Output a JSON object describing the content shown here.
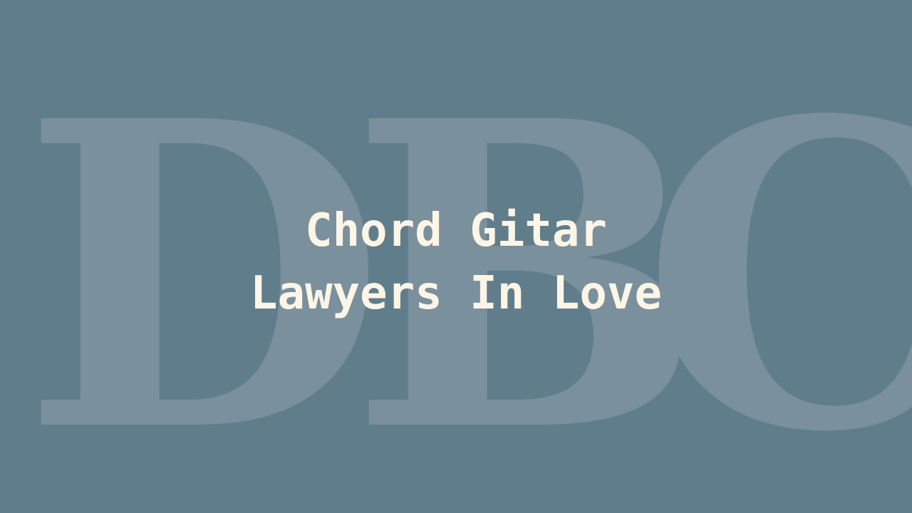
{
  "background": {
    "color": "#607d8b",
    "watermark_letters": [
      "D",
      "B",
      "C"
    ],
    "watermark_color": "#7a909d"
  },
  "title": {
    "line1": "Chord Gitar",
    "line2": "Lawyers In Love",
    "color": "#fdf5e6"
  }
}
